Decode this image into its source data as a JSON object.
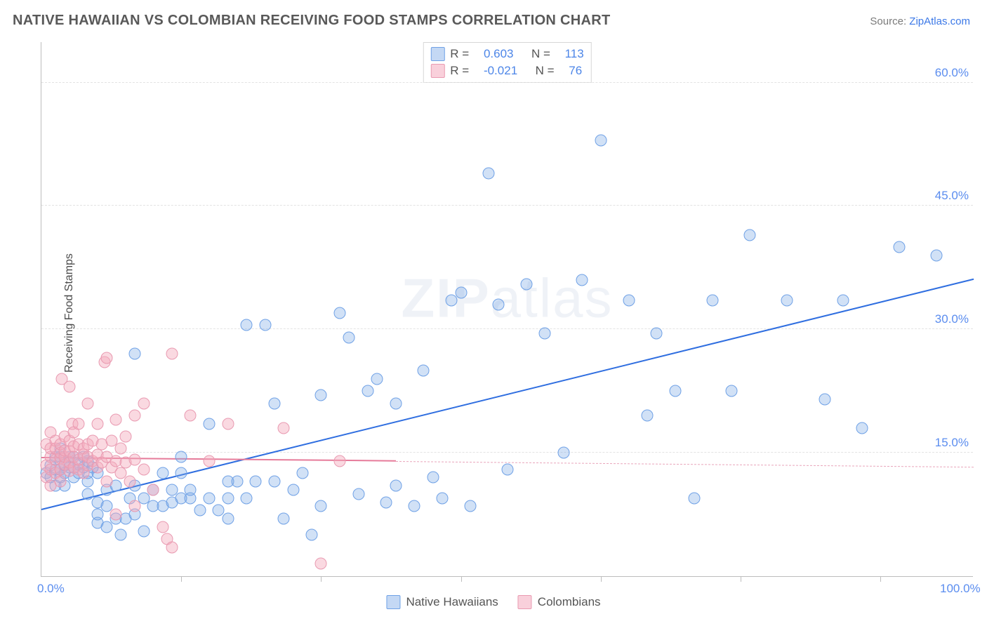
{
  "chart": {
    "type": "scatter",
    "title": "NATIVE HAWAIIAN VS COLOMBIAN RECEIVING FOOD STAMPS CORRELATION CHART",
    "source_label": "Source:",
    "source_name": "ZipAtlas.com",
    "ylabel": "Receiving Food Stamps",
    "watermark": "ZIPatlas",
    "xlim": [
      0,
      100
    ],
    "ylim": [
      0,
      65
    ],
    "ytick_values": [
      15,
      30,
      45,
      60
    ],
    "ytick_labels": [
      "15.0%",
      "30.0%",
      "45.0%",
      "60.0%"
    ],
    "xtick_values": [
      0,
      100
    ],
    "xtick_labels": [
      "0.0%",
      "100.0%"
    ],
    "vtick_values": [
      15,
      30,
      45,
      60,
      75,
      90
    ],
    "background_color": "#ffffff",
    "grid_color": "#e3e3e3",
    "axis_color": "#bdbdbd",
    "tick_label_color": "#5b8def",
    "title_color": "#595959",
    "marker_radius": 7.5,
    "series": [
      {
        "name": "Native Hawaiians",
        "key": "blue",
        "color_fill": "rgba(124,169,230,0.35)",
        "color_stroke": "#6fa1e6",
        "R": "0.603",
        "N": "113",
        "reg_line": {
          "x1": 0,
          "y1": 8,
          "x2": 100,
          "y2": 36,
          "color": "#2f6ee0",
          "width": 2.5,
          "dash": false
        },
        "points": [
          [
            0.5,
            12.5
          ],
          [
            1,
            12
          ],
          [
            1,
            13.5
          ],
          [
            1.5,
            11
          ],
          [
            1.5,
            13
          ],
          [
            1.5,
            14.5
          ],
          [
            2,
            12
          ],
          [
            2,
            13
          ],
          [
            2,
            14.5
          ],
          [
            2,
            15.5
          ],
          [
            2.5,
            11
          ],
          [
            2.5,
            12.5
          ],
          [
            2.5,
            13.5
          ],
          [
            3,
            13.2
          ],
          [
            3,
            14.5
          ],
          [
            3.5,
            13.2
          ],
          [
            3.5,
            12
          ],
          [
            3.5,
            14.5
          ],
          [
            4,
            12.5
          ],
          [
            4,
            13.6
          ],
          [
            4.5,
            13.2
          ],
          [
            4.5,
            14.5
          ],
          [
            5,
            10
          ],
          [
            5,
            11.5
          ],
          [
            5,
            12.5
          ],
          [
            5,
            14
          ],
          [
            5.5,
            13.2
          ],
          [
            6,
            7.5
          ],
          [
            6,
            9
          ],
          [
            6,
            12.5
          ],
          [
            6,
            6.5
          ],
          [
            7,
            6
          ],
          [
            7,
            8.5
          ],
          [
            7,
            10.5
          ],
          [
            8,
            7
          ],
          [
            8,
            11
          ],
          [
            8.5,
            5
          ],
          [
            9,
            7
          ],
          [
            9.5,
            9.5
          ],
          [
            10,
            7.5
          ],
          [
            10,
            11
          ],
          [
            10,
            27
          ],
          [
            11,
            5.5
          ],
          [
            11,
            9.5
          ],
          [
            12,
            8.5
          ],
          [
            12,
            10.5
          ],
          [
            13,
            8.5
          ],
          [
            13,
            12.5
          ],
          [
            14,
            9
          ],
          [
            14,
            10.5
          ],
          [
            15,
            9.5
          ],
          [
            15,
            12.5
          ],
          [
            15,
            14.5
          ],
          [
            16,
            9.5
          ],
          [
            16,
            10.5
          ],
          [
            17,
            8
          ],
          [
            18,
            9.5
          ],
          [
            18,
            18.5
          ],
          [
            19,
            8
          ],
          [
            20,
            7
          ],
          [
            20,
            9.5
          ],
          [
            20,
            11.5
          ],
          [
            21,
            11.5
          ],
          [
            22,
            9.5
          ],
          [
            22,
            30.5
          ],
          [
            23,
            11.5
          ],
          [
            24,
            30.5
          ],
          [
            25,
            21
          ],
          [
            25,
            11.5
          ],
          [
            26,
            7
          ],
          [
            27,
            10.5
          ],
          [
            28,
            12.5
          ],
          [
            29,
            5
          ],
          [
            30,
            8.5
          ],
          [
            30,
            22
          ],
          [
            32,
            32
          ],
          [
            33,
            29
          ],
          [
            34,
            10
          ],
          [
            35,
            22.5
          ],
          [
            36,
            24
          ],
          [
            37,
            9
          ],
          [
            38,
            11
          ],
          [
            38,
            21
          ],
          [
            40,
            8.5
          ],
          [
            41,
            25
          ],
          [
            42,
            12
          ],
          [
            43,
            9.5
          ],
          [
            44,
            33.5
          ],
          [
            45,
            34.5
          ],
          [
            46,
            8.5
          ],
          [
            48,
            49
          ],
          [
            49,
            33
          ],
          [
            50,
            13
          ],
          [
            52,
            35.5
          ],
          [
            54,
            29.5
          ],
          [
            56,
            15
          ],
          [
            58,
            36
          ],
          [
            60,
            53
          ],
          [
            63,
            33.5
          ],
          [
            65,
            19.5
          ],
          [
            66,
            29.5
          ],
          [
            68,
            22.5
          ],
          [
            70,
            9.5
          ],
          [
            72,
            33.5
          ],
          [
            74,
            22.5
          ],
          [
            76,
            41.5
          ],
          [
            80,
            33.5
          ],
          [
            84,
            21.5
          ],
          [
            86,
            33.5
          ],
          [
            88,
            18
          ],
          [
            92,
            40
          ],
          [
            96,
            39
          ]
        ]
      },
      {
        "name": "Colombians",
        "key": "pink",
        "color_fill": "rgba(244,170,189,0.45)",
        "color_stroke": "#e99ab1",
        "R": "-0.021",
        "N": "76",
        "reg_line_solid": {
          "x1": 0,
          "y1": 14.3,
          "x2": 38,
          "y2": 13.9,
          "color": "#e67b9a",
          "width": 2,
          "dash": false
        },
        "reg_line_dash": {
          "x1": 38,
          "y1": 13.9,
          "x2": 100,
          "y2": 13.2,
          "color": "#e9a5bb",
          "width": 1.5,
          "dash": true
        },
        "points": [
          [
            0.5,
            12
          ],
          [
            0.5,
            13.5
          ],
          [
            0.5,
            16
          ],
          [
            1,
            11
          ],
          [
            1,
            13
          ],
          [
            1,
            14.5
          ],
          [
            1,
            15.5
          ],
          [
            1,
            17.5
          ],
          [
            1.5,
            12.5
          ],
          [
            1.5,
            14.2
          ],
          [
            1.5,
            15.5
          ],
          [
            1.5,
            16.5
          ],
          [
            2,
            11.5
          ],
          [
            2,
            13
          ],
          [
            2,
            14.3
          ],
          [
            2,
            15
          ],
          [
            2,
            16
          ],
          [
            2.2,
            24
          ],
          [
            2.5,
            13.6
          ],
          [
            2.5,
            14.5
          ],
          [
            2.5,
            15.3
          ],
          [
            2.5,
            17
          ],
          [
            3,
            12.8
          ],
          [
            3,
            13.8
          ],
          [
            3,
            15.2
          ],
          [
            3,
            16.5
          ],
          [
            3,
            23
          ],
          [
            3.3,
            18.5
          ],
          [
            3.5,
            13.2
          ],
          [
            3.5,
            14.5
          ],
          [
            3.5,
            15.8
          ],
          [
            3.5,
            17.5
          ],
          [
            4,
            13
          ],
          [
            4,
            14.2
          ],
          [
            4,
            16
          ],
          [
            4,
            18.5
          ],
          [
            4.5,
            12.5
          ],
          [
            4.5,
            14.8
          ],
          [
            4.5,
            15.5
          ],
          [
            5,
            13.5
          ],
          [
            5,
            14.5
          ],
          [
            5,
            16
          ],
          [
            5,
            21
          ],
          [
            5.5,
            14
          ],
          [
            5.5,
            16.5
          ],
          [
            6,
            13.2
          ],
          [
            6,
            14.8
          ],
          [
            6,
            18.5
          ],
          [
            6.5,
            13.8
          ],
          [
            6.5,
            16
          ],
          [
            6.8,
            26
          ],
          [
            7,
            11.5
          ],
          [
            7,
            14.5
          ],
          [
            7,
            26.5
          ],
          [
            7.5,
            13.2
          ],
          [
            7.5,
            16.5
          ],
          [
            8,
            7.5
          ],
          [
            8,
            14
          ],
          [
            8,
            19
          ],
          [
            8.5,
            12.5
          ],
          [
            8.5,
            15.5
          ],
          [
            9,
            13.8
          ],
          [
            9,
            17
          ],
          [
            9.5,
            11.5
          ],
          [
            10,
            8.5
          ],
          [
            10,
            14.2
          ],
          [
            10,
            19.5
          ],
          [
            11,
            13
          ],
          [
            11,
            21
          ],
          [
            12,
            10.5
          ],
          [
            13,
            6
          ],
          [
            13.5,
            4.5
          ],
          [
            14,
            3.5
          ],
          [
            14,
            27
          ],
          [
            16,
            19.5
          ],
          [
            18,
            14
          ],
          [
            20,
            18.5
          ],
          [
            26,
            18
          ],
          [
            30,
            1.5
          ],
          [
            32,
            14
          ]
        ]
      }
    ],
    "legend_bottom": [
      {
        "label": "Native Hawaiians",
        "swatch": "blue"
      },
      {
        "label": "Colombians",
        "swatch": "pink"
      }
    ]
  }
}
